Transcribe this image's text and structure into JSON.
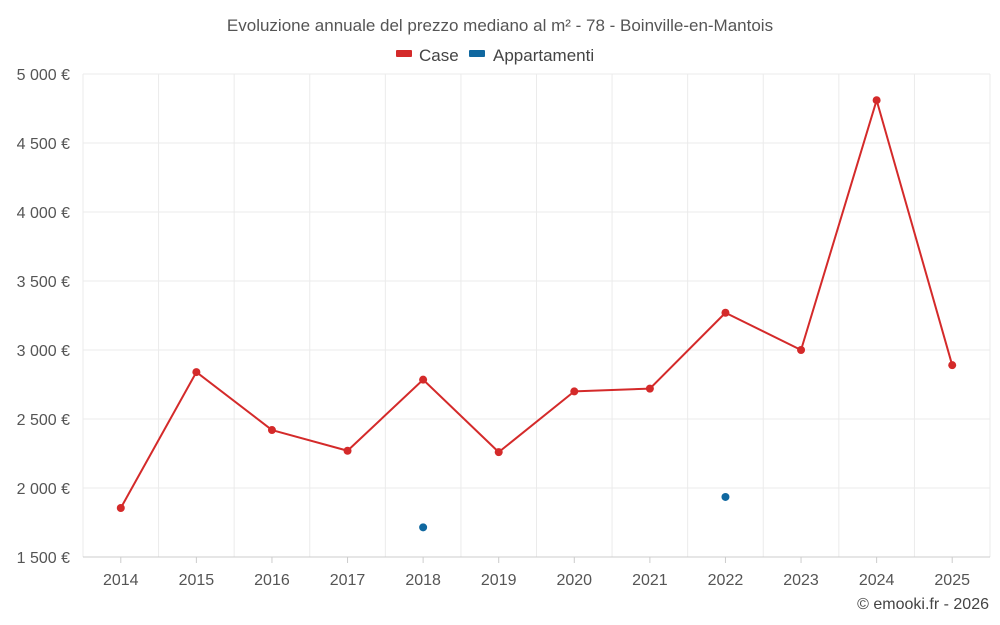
{
  "chart_data": {
    "type": "line",
    "title": "Evoluzione annuale del prezzo mediano al m² - 78 - Boinville-en-Mantois",
    "categories": [
      "2014",
      "2015",
      "2016",
      "2017",
      "2018",
      "2019",
      "2020",
      "2021",
      "2022",
      "2023",
      "2024",
      "2025"
    ],
    "y_ticks": [
      1500,
      2000,
      2500,
      3000,
      3500,
      4000,
      4500,
      5000
    ],
    "y_tick_labels": [
      "1 500 €",
      "2 000 €",
      "2 500 €",
      "3 000 €",
      "3 500 €",
      "4 000 €",
      "4 500 €",
      "5 000 €"
    ],
    "ylim": [
      1500,
      5000
    ],
    "legend_position": "top-center",
    "grid": true,
    "series": [
      {
        "name": "Case",
        "color": "#d42a2a",
        "values": [
          1855,
          2840,
          2420,
          2270,
          2785,
          2260,
          2700,
          2720,
          3270,
          3000,
          4810,
          2890
        ]
      },
      {
        "name": "Appartamenti",
        "color": "#1068a0",
        "values": [
          null,
          null,
          null,
          null,
          1715,
          null,
          null,
          null,
          1935,
          null,
          null,
          null
        ]
      }
    ]
  },
  "legend": {
    "case_label": "Case",
    "appartamenti_label": "Appartamenti"
  },
  "credit": "© emooki.fr - 2026"
}
